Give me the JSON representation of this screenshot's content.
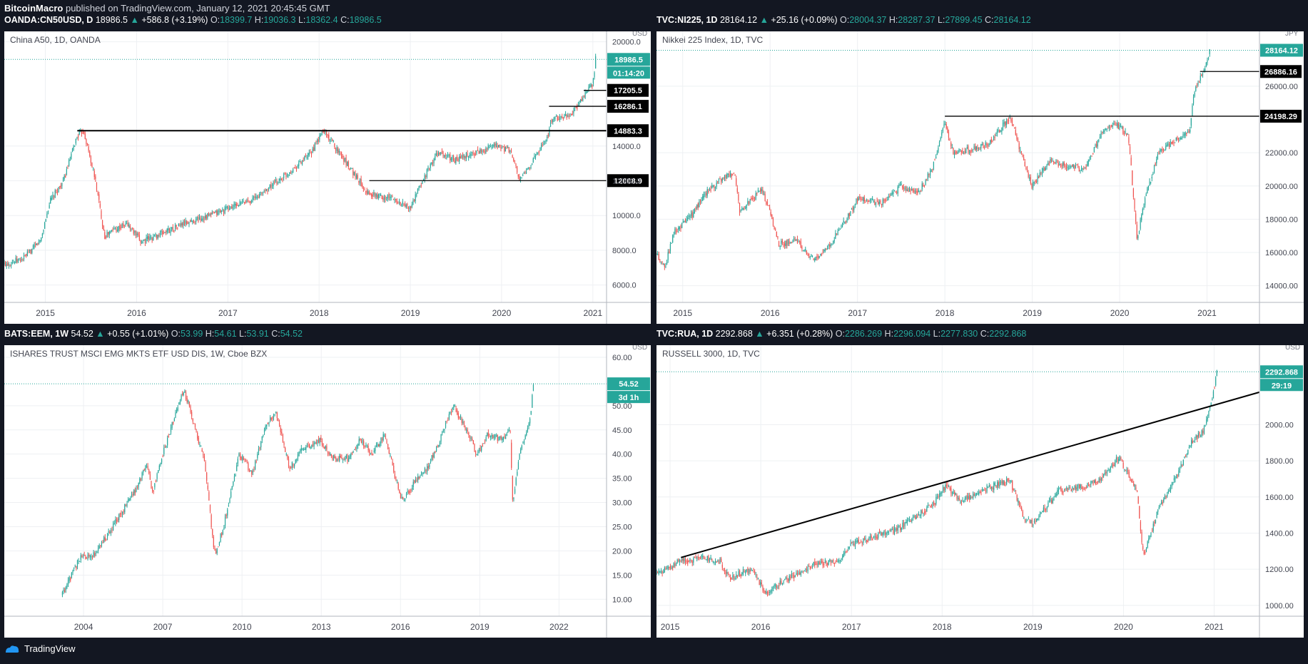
{
  "header": {
    "author": "BitcoinMacro",
    "published_text": "published on TradingView.com, January 12, 2021 20:45:45 GMT"
  },
  "footer": {
    "brand": "TradingView"
  },
  "colors": {
    "up": "#26a69a",
    "down": "#ef5350",
    "background": "#131722",
    "grid": "#eef0f3"
  },
  "panels": [
    {
      "symbol": "OANDA:CN50USD, D",
      "last": "18986.5",
      "change": "+586.8 (+3.19%)",
      "ohlc": {
        "o": "18399.7",
        "h": "19036.3",
        "l": "18362.4",
        "c": "18986.5"
      },
      "legend": "China A50, 1D, OANDA",
      "currency_label": "USD",
      "countdown": "01:14:20"
    },
    {
      "symbol": "TVC:NI225, 1D",
      "last": "28164.12",
      "change": "+25.16 (+0.09%)",
      "ohlc": {
        "o": "28004.37",
        "h": "28287.37",
        "l": "27899.45",
        "c": "28164.12"
      },
      "legend": "Nikkei 225 Index, 1D, TVC",
      "currency_label": "JPY",
      "countdown": ""
    },
    {
      "symbol": "BATS:EEM, 1W",
      "last": "54.52",
      "change": "+0.55 (+1.01%)",
      "ohlc": {
        "o": "53.99",
        "h": "54.61",
        "l": "53.91",
        "c": "54.52"
      },
      "legend": "ISHARES TRUST MSCI EMG MKTS ETF USD DIS, 1W, Cboe BZX",
      "currency_label": "USD",
      "countdown": "3d 1h"
    },
    {
      "symbol": "TVC:RUA, 1D",
      "last": "2292.868",
      "change": "+6.351 (+0.28%)",
      "ohlc": {
        "o": "2286.269",
        "h": "2296.094",
        "l": "2277.830",
        "c": "2292.868"
      },
      "legend": "RUSSELL 3000, 1D, TVC",
      "currency_label": "USD",
      "countdown": "29:19"
    }
  ],
  "chart_data": [
    {
      "type": "candlestick",
      "x_range": [
        2014.55,
        2021.15
      ],
      "ylim": [
        5000,
        20600
      ],
      "y_ticks": [
        "6000.0",
        "8000.0",
        "10000.0",
        "12000.0",
        "14000.0",
        "20000.0"
      ],
      "y_tick_values": [
        6000,
        8000,
        10000,
        12000,
        14000,
        20000
      ],
      "x_ticks": [
        "2015",
        "2016",
        "2017",
        "2018",
        "2019",
        "2020",
        "2021"
      ],
      "x_tick_values": [
        2015,
        2016,
        2017,
        2018,
        2019,
        2020,
        2021
      ],
      "anchors": [
        [
          2014.55,
          7200
        ],
        [
          2014.75,
          7500
        ],
        [
          2014.85,
          8000
        ],
        [
          2014.95,
          8600
        ],
        [
          2015.05,
          10800
        ],
        [
          2015.2,
          12000
        ],
        [
          2015.35,
          14600
        ],
        [
          2015.42,
          14900
        ],
        [
          2015.55,
          12000
        ],
        [
          2015.65,
          8800
        ],
        [
          2015.75,
          9200
        ],
        [
          2015.9,
          9500
        ],
        [
          2016.05,
          8500
        ],
        [
          2016.2,
          8800
        ],
        [
          2016.5,
          9500
        ],
        [
          2016.8,
          10000
        ],
        [
          2017.0,
          10400
        ],
        [
          2017.3,
          11000
        ],
        [
          2017.6,
          12200
        ],
        [
          2017.9,
          13500
        ],
        [
          2018.05,
          14900
        ],
        [
          2018.2,
          13800
        ],
        [
          2018.4,
          12300
        ],
        [
          2018.55,
          11200
        ],
        [
          2018.8,
          11000
        ],
        [
          2019.0,
          10400
        ],
        [
          2019.15,
          12200
        ],
        [
          2019.3,
          13600
        ],
        [
          2019.5,
          13200
        ],
        [
          2019.75,
          13700
        ],
        [
          2019.95,
          14000
        ],
        [
          2020.1,
          13700
        ],
        [
          2020.2,
          12000
        ],
        [
          2020.3,
          12800
        ],
        [
          2020.5,
          14500
        ],
        [
          2020.55,
          15500
        ],
        [
          2020.75,
          15800
        ],
        [
          2020.9,
          16800
        ],
        [
          2021.0,
          17600
        ],
        [
          2021.03,
          18986.5
        ]
      ],
      "horizontal_lines": [
        {
          "value": 14883.3,
          "x_from": 2015.35,
          "label": "14883.3"
        },
        {
          "value": 12008.9,
          "x_from": 2018.55,
          "label": "12008.9"
        },
        {
          "value": 16286.1,
          "x_from": 2020.52,
          "label": "16286.1"
        },
        {
          "value": 17205.5,
          "x_from": 2020.9,
          "label": "17205.5"
        }
      ],
      "last_value": 18986.5
    },
    {
      "type": "candlestick",
      "x_range": [
        2014.7,
        2021.6
      ],
      "ylim": [
        13000,
        29300
      ],
      "y_ticks": [
        "14000.00",
        "16000.00",
        "18000.00",
        "20000.00",
        "22000.00",
        "26000.00"
      ],
      "y_tick_values": [
        14000,
        16000,
        18000,
        20000,
        22000,
        26000
      ],
      "x_ticks": [
        "2015",
        "2016",
        "2017",
        "2018",
        "2019",
        "2020",
        "2021"
      ],
      "x_tick_values": [
        2015,
        2016,
        2017,
        2018,
        2019,
        2020,
        2021
      ],
      "anchors": [
        [
          2014.7,
          15800
        ],
        [
          2014.8,
          15200
        ],
        [
          2014.9,
          17200
        ],
        [
          2015.1,
          18200
        ],
        [
          2015.3,
          19800
        ],
        [
          2015.5,
          20600
        ],
        [
          2015.6,
          20800
        ],
        [
          2015.65,
          18500
        ],
        [
          2015.8,
          19200
        ],
        [
          2015.9,
          19800
        ],
        [
          2016.0,
          18500
        ],
        [
          2016.1,
          16500
        ],
        [
          2016.3,
          16700
        ],
        [
          2016.5,
          15500
        ],
        [
          2016.7,
          16600
        ],
        [
          2016.9,
          18200
        ],
        [
          2017.0,
          19200
        ],
        [
          2017.3,
          19000
        ],
        [
          2017.5,
          20000
        ],
        [
          2017.7,
          19600
        ],
        [
          2017.85,
          21000
        ],
        [
          2018.0,
          23800
        ],
        [
          2018.1,
          22000
        ],
        [
          2018.3,
          22200
        ],
        [
          2018.5,
          22500
        ],
        [
          2018.75,
          24200
        ],
        [
          2018.9,
          21500
        ],
        [
          2019.0,
          20000
        ],
        [
          2019.2,
          21500
        ],
        [
          2019.4,
          21200
        ],
        [
          2019.6,
          21000
        ],
        [
          2019.8,
          23200
        ],
        [
          2019.95,
          23800
        ],
        [
          2020.1,
          23000
        ],
        [
          2020.2,
          16800
        ],
        [
          2020.3,
          19500
        ],
        [
          2020.45,
          22000
        ],
        [
          2020.6,
          22700
        ],
        [
          2020.8,
          23300
        ],
        [
          2020.85,
          25500
        ],
        [
          2020.92,
          26500
        ],
        [
          2021.0,
          27400
        ],
        [
          2021.03,
          28164.12
        ]
      ],
      "horizontal_lines": [
        {
          "value": 24198.29,
          "x_from": 2018.0,
          "label": "24198.29"
        },
        {
          "value": 26886.16,
          "x_from": 2020.92,
          "label": "26886.16"
        }
      ],
      "last_value": 28164.12
    },
    {
      "type": "candlestick",
      "x_range": [
        2001.0,
        2023.8
      ],
      "ylim": [
        6.5,
        62.5
      ],
      "y_ticks": [
        "10.00",
        "15.00",
        "20.00",
        "25.00",
        "30.00",
        "35.00",
        "40.00",
        "45.00",
        "50.00",
        "60.00"
      ],
      "y_tick_values": [
        10,
        15,
        20,
        25,
        30,
        35,
        40,
        45,
        50,
        60
      ],
      "x_ticks": [
        "2004",
        "2007",
        "2010",
        "2013",
        "2016",
        "2019",
        "2022"
      ],
      "x_tick_values": [
        2004,
        2007,
        2010,
        2013,
        2016,
        2019,
        2022
      ],
      "anchors": [
        [
          2003.2,
          11
        ],
        [
          2003.9,
          19
        ],
        [
          2004.3,
          18.5
        ],
        [
          2005.0,
          24
        ],
        [
          2006.0,
          33
        ],
        [
          2006.4,
          38
        ],
        [
          2006.6,
          32
        ],
        [
          2007.0,
          40
        ],
        [
          2007.8,
          53.5
        ],
        [
          2008.2,
          46
        ],
        [
          2008.6,
          38
        ],
        [
          2008.9,
          22
        ],
        [
          2009.0,
          19.5
        ],
        [
          2009.3,
          25
        ],
        [
          2009.9,
          40
        ],
        [
          2010.4,
          36
        ],
        [
          2010.9,
          46
        ],
        [
          2011.3,
          48.5
        ],
        [
          2011.8,
          37
        ],
        [
          2012.3,
          41
        ],
        [
          2012.9,
          43
        ],
        [
          2013.5,
          39
        ],
        [
          2014.0,
          39
        ],
        [
          2014.5,
          43
        ],
        [
          2014.9,
          40
        ],
        [
          2015.4,
          44
        ],
        [
          2015.9,
          33
        ],
        [
          2016.1,
          30
        ],
        [
          2016.6,
          35
        ],
        [
          2017.0,
          37
        ],
        [
          2017.5,
          43
        ],
        [
          2018.0,
          50
        ],
        [
          2018.5,
          45
        ],
        [
          2018.9,
          40
        ],
        [
          2019.3,
          44
        ],
        [
          2019.9,
          43
        ],
        [
          2020.15,
          45
        ],
        [
          2020.25,
          30
        ],
        [
          2020.5,
          40
        ],
        [
          2020.9,
          47
        ],
        [
          2021.03,
          54.52
        ]
      ],
      "last_value": 54.52
    },
    {
      "type": "candlestick",
      "x_range": [
        2014.85,
        2021.5
      ],
      "ylim": [
        940,
        2440
      ],
      "y_ticks": [
        "1000.00",
        "1200.00",
        "1400.00",
        "1600.00",
        "1800.00",
        "2000.00"
      ],
      "y_tick_values": [
        1000,
        1200,
        1400,
        1600,
        1800,
        2000
      ],
      "x_ticks": [
        "2015",
        "2016",
        "2017",
        "2018",
        "2019",
        "2020",
        "2021"
      ],
      "x_tick_values": [
        2015,
        2016,
        2017,
        2018,
        2019,
        2020,
        2021
      ],
      "anchors": [
        [
          2014.85,
          1170
        ],
        [
          2015.1,
          1240
        ],
        [
          2015.4,
          1265
        ],
        [
          2015.55,
          1245
        ],
        [
          2015.65,
          1150
        ],
        [
          2015.9,
          1200
        ],
        [
          2016.05,
          1070
        ],
        [
          2016.3,
          1150
        ],
        [
          2016.6,
          1230
        ],
        [
          2016.85,
          1250
        ],
        [
          2017.0,
          1340
        ],
        [
          2017.5,
          1420
        ],
        [
          2017.9,
          1560
        ],
        [
          2018.05,
          1670
        ],
        [
          2018.2,
          1570
        ],
        [
          2018.5,
          1650
        ],
        [
          2018.75,
          1690
        ],
        [
          2018.9,
          1480
        ],
        [
          2019.0,
          1450
        ],
        [
          2019.3,
          1640
        ],
        [
          2019.6,
          1660
        ],
        [
          2019.8,
          1720
        ],
        [
          2019.95,
          1820
        ],
        [
          2020.15,
          1630
        ],
        [
          2020.22,
          1270
        ],
        [
          2020.4,
          1550
        ],
        [
          2020.6,
          1730
        ],
        [
          2020.75,
          1900
        ],
        [
          2020.9,
          1980
        ],
        [
          2021.0,
          2200
        ],
        [
          2021.03,
          2292.868
        ]
      ],
      "trendline": {
        "from": [
          2015.12,
          1265
        ],
        "to": [
          2021.5,
          2180
        ]
      },
      "last_value": 2292.868
    }
  ]
}
